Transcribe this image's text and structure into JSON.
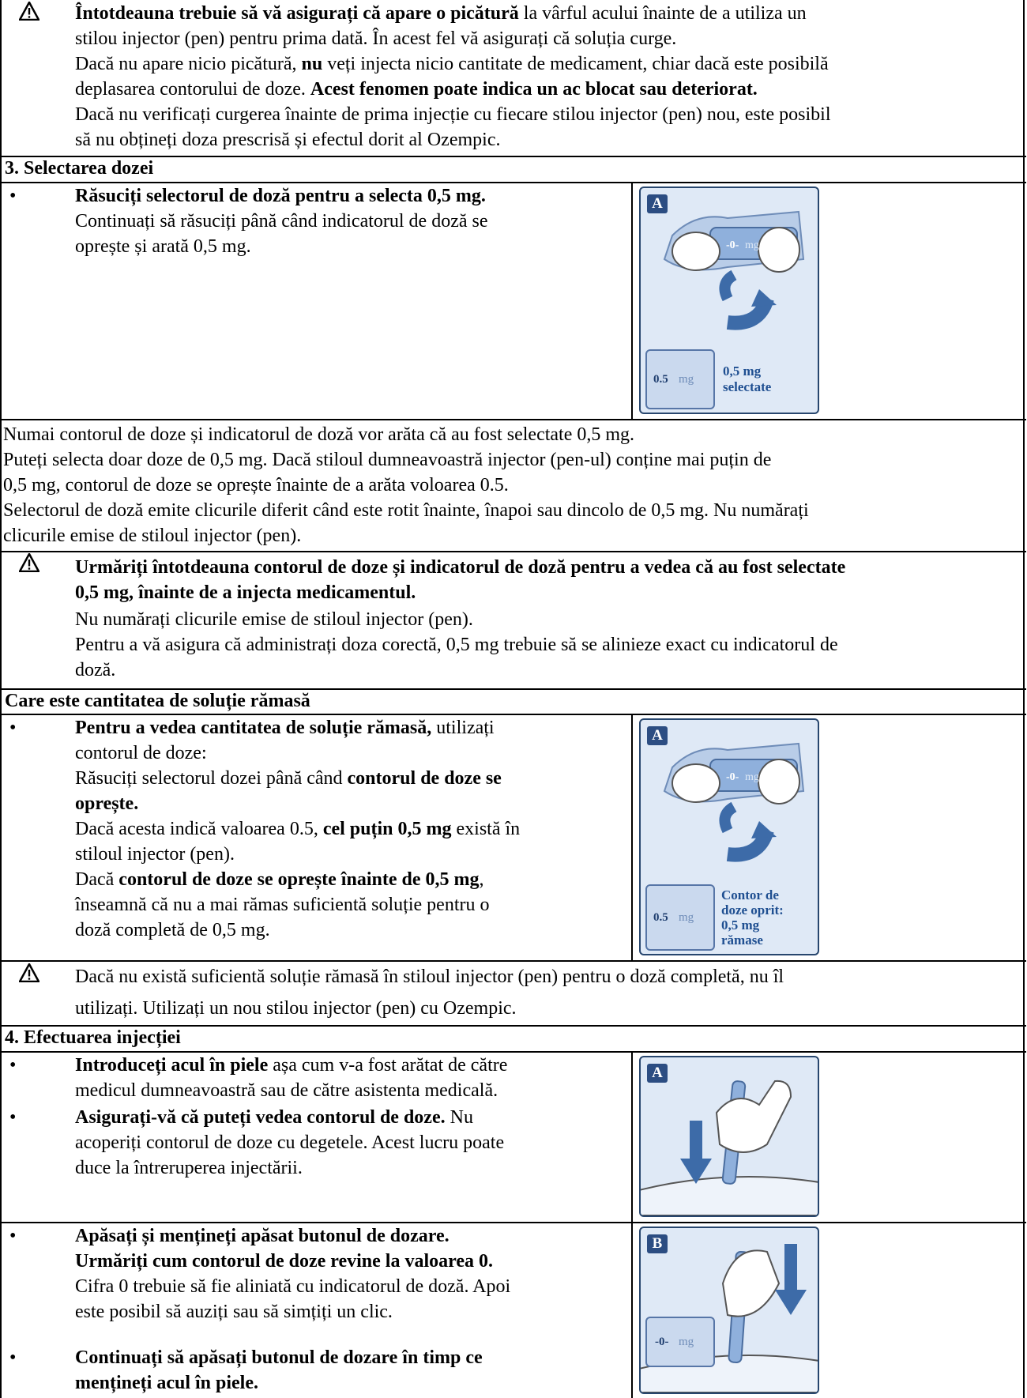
{
  "warning1": {
    "l1_bold": "Întotdeauna trebuie să vă asigurați că apare o picătură",
    "l1_rest": " la vârful acului înainte de a utiliza un",
    "l2": "stilou injector (pen) pentru prima dată. În acest fel vă asigurați că soluția curge.",
    "l3_a": "Dacă nu apare nicio picătură, ",
    "l3_b": "nu",
    "l3_c": " veți injecta nicio cantitate de medicament, chiar dacă este posibilă",
    "l4_a": "deplasarea contorului de doze. ",
    "l4_b": "Acest fenomen poate indica un ac blocat sau deteriorat.",
    "l5": "Dacă nu verificați curgerea înainte de prima injecție cu fiecare stilou injector (pen) nou, este posibil",
    "l6": "să nu obțineți doza prescrisă și efectul dorit al Ozempic."
  },
  "section3": {
    "title": "3. Selectarea dozei",
    "bullet": "•",
    "bold": "Răsuciți selectorul de doză pentru a selecta 0,5 mg.",
    "l2": "Continuați să răsuciți până când indicatorul de doză se",
    "l3": "oprește și arată 0,5 mg.",
    "image": {
      "label": "A",
      "counter": "-0-",
      "counter_mg": "mg",
      "small_counter": "0.5",
      "caption1": "0,5 mg",
      "caption2": "selectate"
    }
  },
  "notes": {
    "l1": "Numai contorul de doze și indicatorul de doză vor arăta că au fost selectate 0,5 mg.",
    "l2": "Puteți selecta doar doze de 0,5 mg. Dacă stiloul dumneavoastră injector (pen-ul) conține mai puțin de",
    "l3": "0,5 mg, contorul de doze se oprește înainte de a arăta voloarea 0.5.",
    "l4": "Selectorul de doză emite clicurile diferit când este rotit înainte, înapoi sau dincolo de 0,5 mg. Nu numărați",
    "l5": "clicurile emise de stiloul injector (pen)."
  },
  "warning2": {
    "l1": "Urmăriți întotdeauna contorul de doze și indicatorul de doză pentru a vedea că au fost selectate",
    "l2": "0,5 mg, înainte de a injecta medicamentul.",
    "l3": "Nu numărați clicurile emise de stiloul injector (pen).",
    "l4": "Pentru a vă asigura că administrați doza corectă, 0,5 mg trebuie să se alinieze exact cu indicatorul de",
    "l5": "doză."
  },
  "remaining": {
    "title": "Care este cantitatea de soluție rămasă",
    "bullet": "•",
    "l1_bold": "Pentru a vedea cantitatea de soluție rămasă,",
    "l1_rest": " utilizați",
    "l2": "contorul de doze:",
    "l3_a": "Răsuciți selectorul dozei până când ",
    "l3_b": "contorul de doze se",
    "l4": "oprește.",
    "l5_a": "Dacă acesta indică valoarea 0.5, ",
    "l5_b": "cel puțin 0,5 mg",
    "l5_c": " există în",
    "l6": "stiloul injector (pen).",
    "l7_a": "Dacă ",
    "l7_b": "contorul de doze se oprește înainte de 0,5 mg",
    "l7_c": ",",
    "l8": "înseamnă că nu a mai rămas suficientă soluție pentru o",
    "l9": "doză completă de 0,5 mg.",
    "image": {
      "label": "A",
      "counter": "-0-",
      "counter_mg": "mg",
      "small_counter": "0.5",
      "caption1": "Contor de",
      "caption2": "doze oprit:",
      "caption3": "0,5 mg",
      "caption4": "rămase"
    }
  },
  "warning3": {
    "l1": "Dacă nu există suficientă soluție rămasă în stiloul injector (pen) pentru o doză completă, nu îl",
    "l2": "utilizați. Utilizați un nou stilou injector (pen) cu Ozempic."
  },
  "section4": {
    "title": "4. Efectuarea injecției",
    "bullet": "•",
    "b1_bold": "Introduceți acul în piele",
    "b1_rest": " așa cum v-a fost arătat de către",
    "b1_l2": "medicul dumneavoastră sau de către asistenta medicală.",
    "b2_bold": "Asigurați-vă că puteți vedea contorul de doze.",
    "b2_rest": " Nu",
    "b2_l2": "acoperiți contorul de doze cu degetele. Acest lucru poate",
    "b2_l3": "duce la întreruperea injectării.",
    "image_a": {
      "label": "A"
    },
    "b3_l1": "Apăsați și mențineți apăsat butonul de dozare.",
    "b3_l2": "Urmăriți cum contorul de doze revine la valoarea 0.",
    "b3_l3": "Cifra 0 trebuie să fie aliniată cu indicatorul de doză. Apoi",
    "b3_l4": "este posibil să auziți sau să simțiți un clic.",
    "b4_l1": "Continuați să apăsați butonul de dozare în timp ce",
    "b4_l2": "mențineți acul în piele.",
    "image_b": {
      "label": "B",
      "counter": "-0-",
      "counter_mg": "mg"
    }
  },
  "colors": {
    "accent": "#2c4d82",
    "caption": "#1f4f91",
    "panel": "#dfe9f6"
  }
}
